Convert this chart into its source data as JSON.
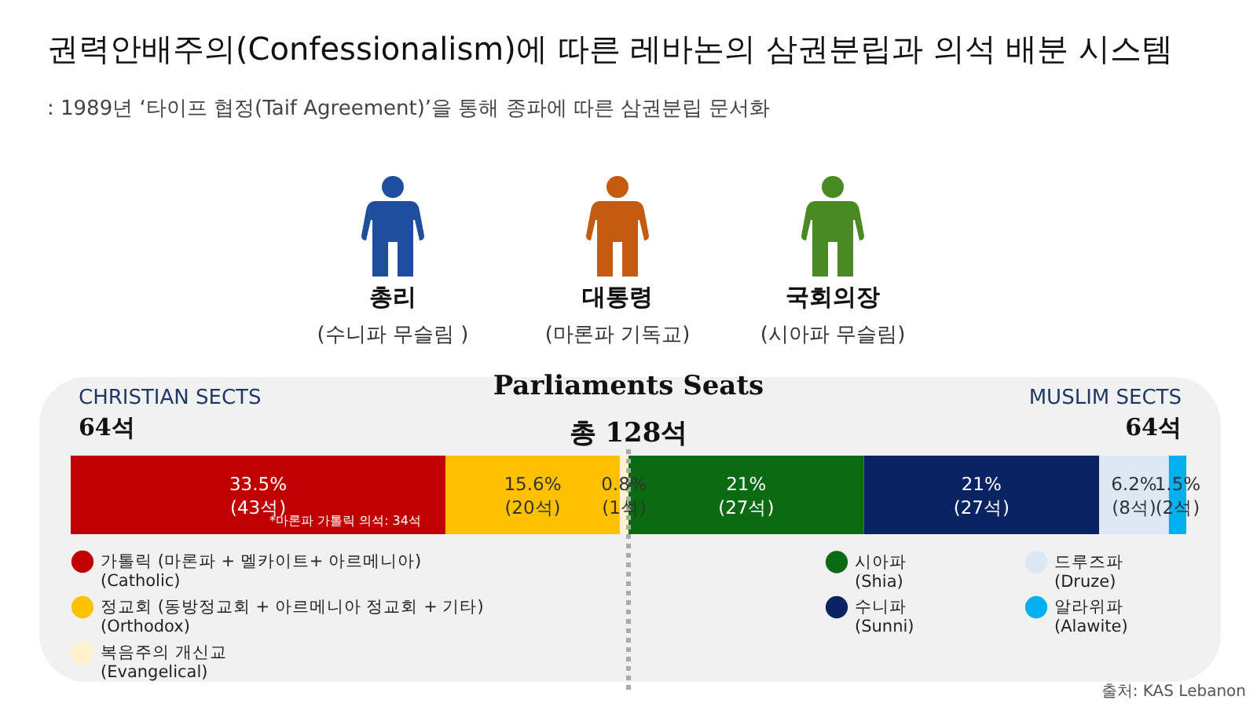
{
  "chart_data": {
    "type": "bar",
    "orientation": "horizontal",
    "stacked": true,
    "tick_labels": false,
    "legend": "bottom",
    "title": "권력안배주의(Confessionalism)에 따른 레바논의 삼권분립과 의석 배분 시스템",
    "subtitle": ": 1989년 ‘타이프 협정(Taif Agreement)’을 통해 종파에 따른 삼권분립 문서화",
    "categories": [
      null
    ],
    "series": [
      {
        "name": "가톨릭 (마론파 + 멜카이트+ 아르메니아)\n(Catholic)",
        "color": "#c00000",
        "values": [
          43
        ],
        "value_labels": [
          "33.5%\n(43석)"
        ]
      },
      {
        "name": "정교회 (동방정교회 + 아르메니아 정교회 + 기타)\n(Orthodox)",
        "color": "#ffc000",
        "values": [
          20
        ],
        "value_labels": [
          "15.6%\n(20석)"
        ]
      },
      {
        "name": "복음주의 개신교\n(Evangelical)",
        "color": "#fff2cc",
        "values": [
          1
        ],
        "value_labels": [
          "0.8%\n(1석)"
        ]
      },
      {
        "name": "시아파\n(Shia)",
        "color": "#0a6b12",
        "values": [
          27
        ],
        "value_labels": [
          "21%\n(27석)"
        ]
      },
      {
        "name": "수니파\n(Sunni)",
        "color": "#0a2463",
        "values": [
          27
        ],
        "value_labels": [
          "21%\n(27석)"
        ]
      },
      {
        "name": "드루즈파\n(Druze)",
        "color": "#dde8f5",
        "values": [
          8
        ],
        "value_labels": [
          "6.2%\n(8석)"
        ]
      },
      {
        "name": "알라위파\n(Alawite)",
        "color": "#00b0f0",
        "values": [
          2
        ],
        "value_labels": [
          "1.5%\n(2석)"
        ]
      }
    ],
    "ref_lines": [
      {
        "axis": "x",
        "value": 64,
        "color": "#aaaaaa",
        "line_style": "dotted"
      }
    ],
    "annotations": [
      "총리",
      "(수니파 무슬림 )",
      "대통령",
      "(마론파 기독교)",
      "국회의장",
      "(시아파 무슬림)",
      "Parliaments Seats",
      "총 128석",
      "CHRISTIAN SECTS",
      "64석",
      "MUSLIM SECTS",
      "64석",
      "*마론파 가톨릭 의석: 34석",
      "출처: KAS Lebanon"
    ]
  }
}
